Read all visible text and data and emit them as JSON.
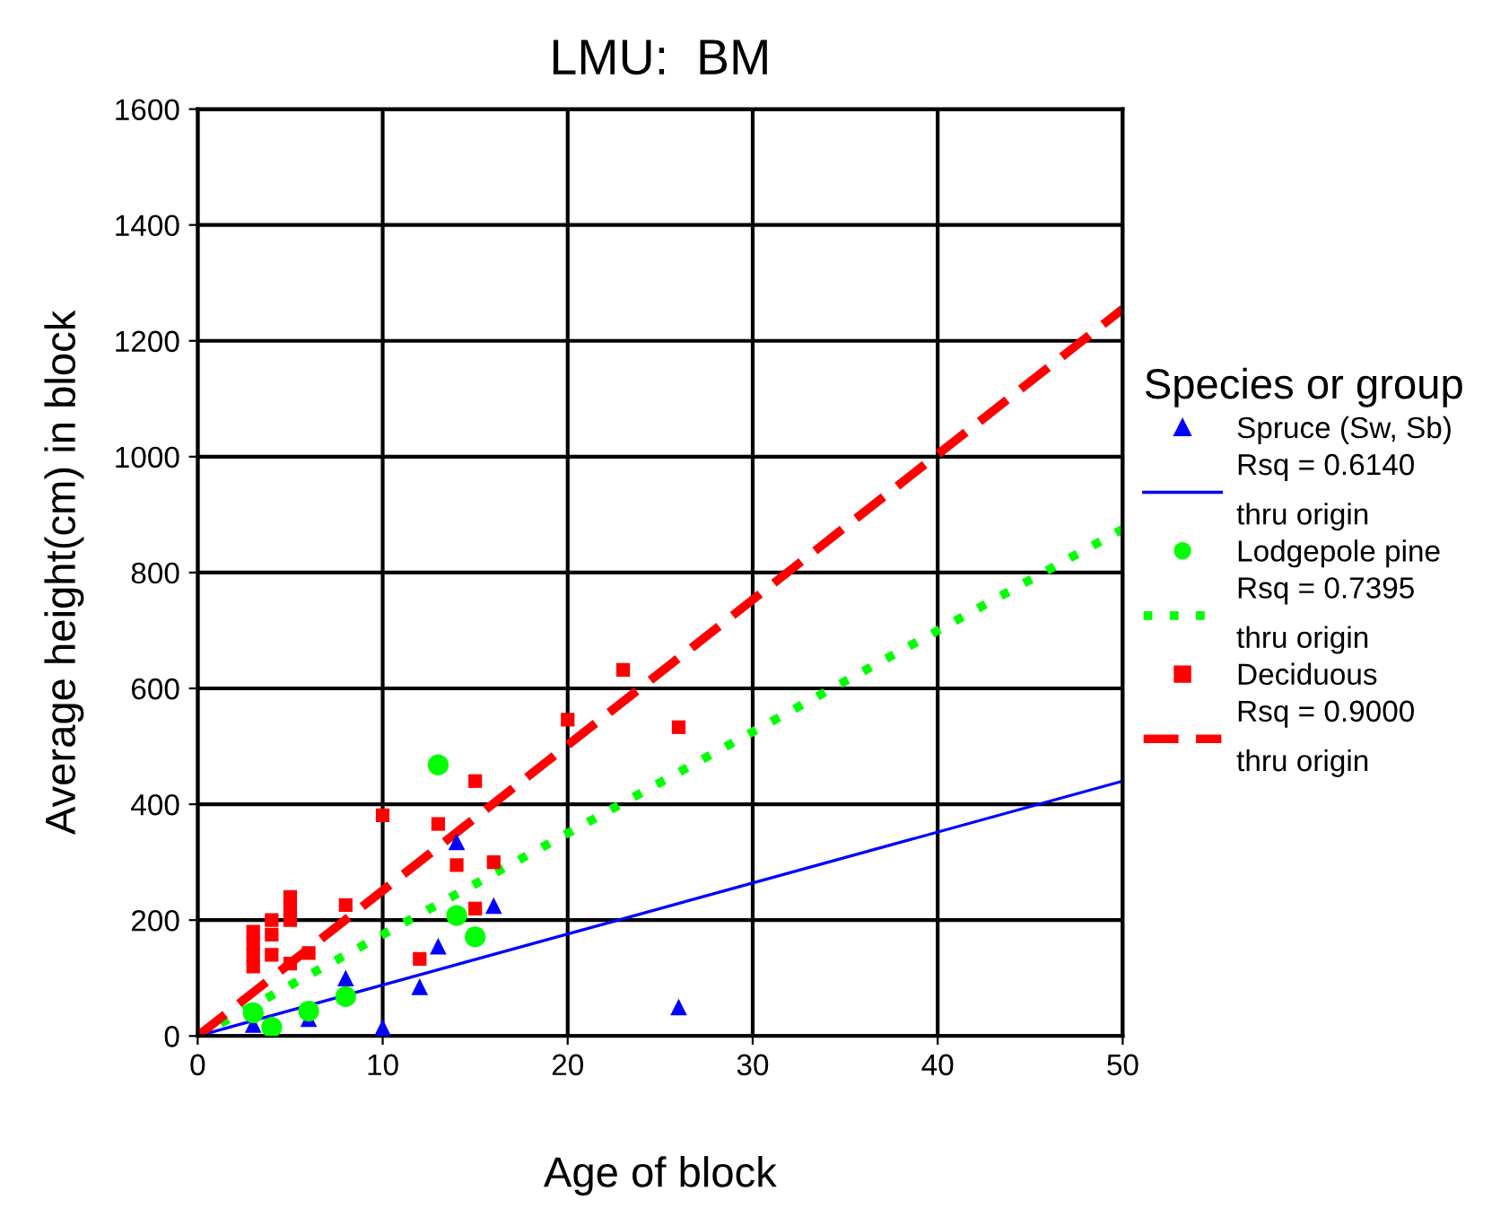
{
  "chart_data": {
    "type": "scatter",
    "title": "LMU:  BM",
    "xlabel": "Age of block",
    "ylabel": "Average height(cm) in block",
    "legend_title": "Species or group",
    "legend": "right",
    "grid": true,
    "xlim": [
      0,
      50
    ],
    "xticks": [
      0,
      10,
      20,
      30,
      40,
      50
    ],
    "ylim": [
      0,
      1600
    ],
    "yticks": [
      0,
      200,
      400,
      600,
      800,
      1000,
      1200,
      1400,
      1600
    ],
    "series": [
      {
        "type": "line",
        "name": "Rsq = 0.6140\nthru origin",
        "color": "#0000ff",
        "line_style": "solid",
        "marker": "none",
        "x": [
          0,
          50
        ],
        "values": [
          0,
          440
        ]
      },
      {
        "type": "scatter",
        "name": "Spruce (Sw, Sb)",
        "color": "#0000ff",
        "marker": "triangle",
        "x": [
          3,
          6,
          8,
          10,
          12,
          13,
          14,
          16,
          26
        ],
        "values": [
          20,
          30,
          100,
          15,
          85,
          155,
          335,
          225,
          50
        ]
      },
      {
        "type": "line",
        "name": "Rsq = 0.7395\nthru origin",
        "color": "#00ff00",
        "line_style": "dotted",
        "marker": "none",
        "x": [
          0,
          50
        ],
        "values": [
          0,
          875
        ]
      },
      {
        "type": "scatter",
        "name": "Lodgepole pine",
        "color": "#00ff00",
        "marker": "circle",
        "x": [
          3,
          4,
          6,
          8,
          13,
          14,
          15
        ],
        "values": [
          40,
          15,
          43,
          68,
          468,
          208,
          171
        ]
      },
      {
        "type": "line",
        "name": "Rsq = 0.9000\nthru origin",
        "color": "#ff0000",
        "line_style": "dashed",
        "marker": "none",
        "x": [
          0,
          50
        ],
        "values": [
          0,
          1255
        ]
      },
      {
        "type": "scatter",
        "name": "Deciduous",
        "color": "#ff0000",
        "marker": "square",
        "x": [
          3,
          3,
          3,
          3,
          4,
          4,
          4,
          5,
          5,
          5,
          5,
          6,
          8,
          10,
          12,
          13,
          14,
          15,
          15,
          16,
          20,
          23,
          26
        ],
        "values": [
          180,
          160,
          140,
          120,
          200,
          175,
          140,
          240,
          220,
          200,
          125,
          143,
          226,
          381,
          133,
          366,
          295,
          220,
          440,
          300,
          546,
          632,
          533
        ]
      }
    ]
  }
}
